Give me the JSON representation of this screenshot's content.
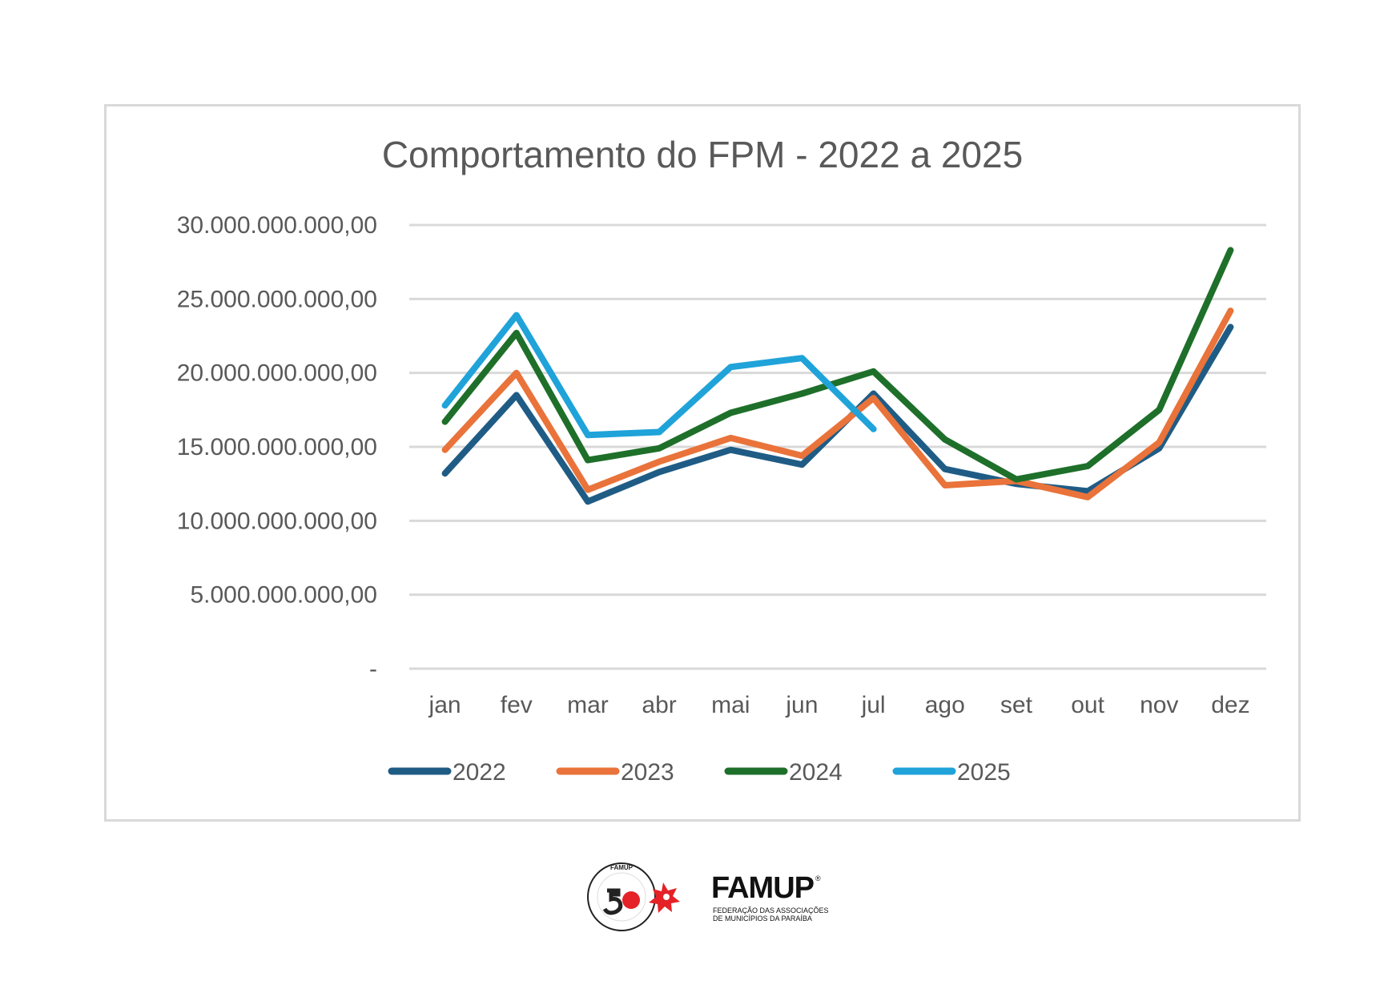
{
  "chart_data": {
    "type": "line",
    "title": "Comportamento do FPM - 2022 a 2025",
    "xlabel": "",
    "ylabel": "",
    "categories": [
      "jan",
      "fev",
      "mar",
      "abr",
      "mai",
      "jun",
      "jul",
      "ago",
      "set",
      "out",
      "nov",
      "dez"
    ],
    "y_ticks": [
      0,
      5000000000,
      10000000000,
      15000000000,
      20000000000,
      25000000000,
      30000000000
    ],
    "y_tick_labels": [
      "-",
      "5.000.000.000,00",
      "10.000.000.000,00",
      "15.000.000.000,00",
      "20.000.000.000,00",
      "25.000.000.000,00",
      "30.000.000.000,00"
    ],
    "ylim": [
      0,
      30000000000
    ],
    "grid": true,
    "legend_position": "bottom",
    "series": [
      {
        "name": "2022",
        "color": "#1f5c85",
        "values": [
          13200000000,
          18500000000,
          11300000000,
          13300000000,
          14800000000,
          13800000000,
          18600000000,
          13500000000,
          12500000000,
          12000000000,
          14900000000,
          23100000000
        ]
      },
      {
        "name": "2023",
        "color": "#e9733a",
        "values": [
          14800000000,
          20000000000,
          12100000000,
          14000000000,
          15600000000,
          14400000000,
          18300000000,
          12400000000,
          12700000000,
          11600000000,
          15300000000,
          24200000000
        ]
      },
      {
        "name": "2024",
        "color": "#1e6f2a",
        "values": [
          16700000000,
          22700000000,
          14100000000,
          14900000000,
          17300000000,
          18600000000,
          20100000000,
          15500000000,
          12800000000,
          13700000000,
          17500000000,
          28300000000
        ]
      },
      {
        "name": "2025",
        "color": "#1fa3d9",
        "values": [
          17800000000,
          23900000000,
          15800000000,
          16000000000,
          20400000000,
          21000000000,
          16200000000,
          null,
          null,
          null,
          null,
          null
        ]
      }
    ]
  },
  "footer": {
    "org_name": "FAMUP",
    "registered": "®",
    "org_subtitle_line1": "FEDERAÇÃO DAS ASSOCIAÇÕES",
    "org_subtitle_line2": "DE MUNICÍPIOS DA PARAÍBA",
    "seal_text": "FAMUP"
  }
}
